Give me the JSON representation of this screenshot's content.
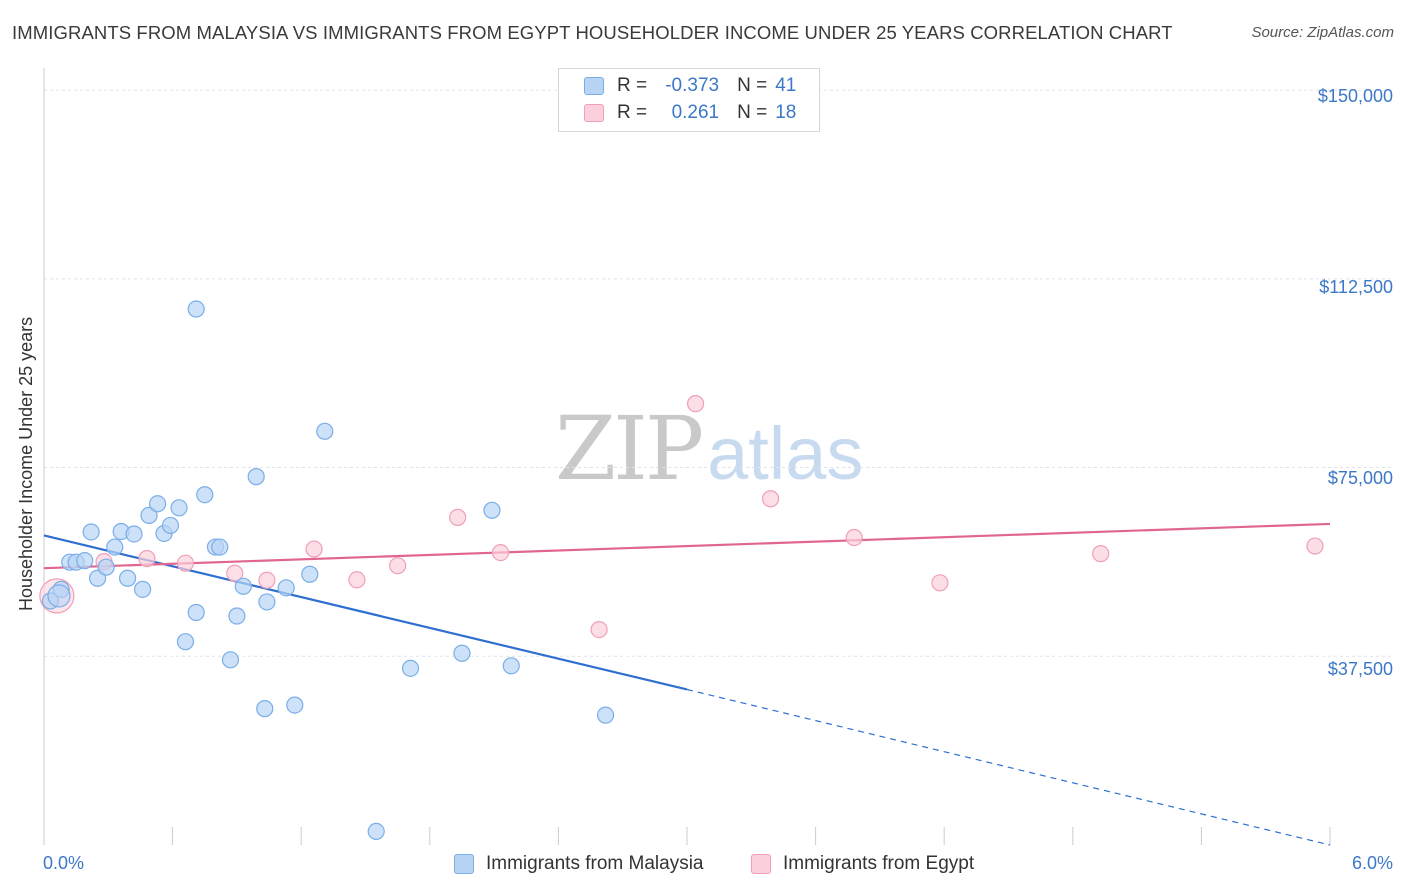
{
  "title": "IMMIGRANTS FROM MALAYSIA VS IMMIGRANTS FROM EGYPT HOUSEHOLDER INCOME UNDER 25 YEARS CORRELATION CHART",
  "source": "Source: ZipAtlas.com",
  "watermark": {
    "zip": "ZIP",
    "atlas": "atlas"
  },
  "colors": {
    "malaysia_fill": "#b8d4f5",
    "malaysia_stroke": "#7aaee8",
    "malaysia_line": "#2f6fd0",
    "egypt_fill": "#fbd0dc",
    "egypt_stroke": "#f0a0b6",
    "egypt_line": "#e06690",
    "tick_text": "#3c78c8",
    "grid": "#dde3ea"
  },
  "stats": {
    "malaysia": {
      "r_label": "R =",
      "r_value": "-0.373",
      "n_label": "N =",
      "n_value": "41"
    },
    "egypt": {
      "r_label": "R =",
      "r_value": "0.261",
      "n_label": "N =",
      "n_value": "18"
    }
  },
  "legend": {
    "malaysia": "Immigrants from Malaysia",
    "egypt": "Immigrants from Egypt"
  },
  "chart_data": {
    "type": "scatter",
    "title": "IMMIGRANTS FROM MALAYSIA VS IMMIGRANTS FROM EGYPT HOUSEHOLDER INCOME UNDER 25 YEARS CORRELATION CHART",
    "xlabel": "",
    "ylabel": "Householder Income Under 25 years",
    "xlim": [
      0,
      6
    ],
    "ylim": [
      0,
      153000
    ],
    "x_tick_labels": [
      "0.0%",
      "6.0%"
    ],
    "y_ticks": [
      37500,
      75000,
      112500,
      150000
    ],
    "y_tick_labels": [
      "$37,500",
      "$75,000",
      "$112,500",
      "$150,000"
    ],
    "grid": true,
    "series": [
      {
        "name": "Immigrants from Malaysia",
        "points": [
          [
            0.03,
            48500
          ],
          [
            0.08,
            50800
          ],
          [
            0.12,
            56200
          ],
          [
            0.15,
            56200
          ],
          [
            0.19,
            56500
          ],
          [
            0.22,
            62200
          ],
          [
            0.25,
            53000
          ],
          [
            0.29,
            55200
          ],
          [
            0.33,
            59200
          ],
          [
            0.36,
            62300
          ],
          [
            0.39,
            53000
          ],
          [
            0.42,
            61800
          ],
          [
            0.46,
            50800
          ],
          [
            0.49,
            65500
          ],
          [
            0.53,
            67800
          ],
          [
            0.56,
            61900
          ],
          [
            0.59,
            63500
          ],
          [
            0.63,
            67000
          ],
          [
            0.66,
            40400
          ],
          [
            0.71,
            46200
          ],
          [
            0.71,
            106500
          ],
          [
            0.75,
            69600
          ],
          [
            0.8,
            59200
          ],
          [
            0.82,
            59200
          ],
          [
            0.87,
            36800
          ],
          [
            0.9,
            45500
          ],
          [
            0.93,
            51400
          ],
          [
            0.99,
            73200
          ],
          [
            1.03,
            27100
          ],
          [
            1.04,
            48300
          ],
          [
            1.13,
            51100
          ],
          [
            1.17,
            27800
          ],
          [
            1.24,
            53800
          ],
          [
            1.31,
            82200
          ],
          [
            1.55,
            2700
          ],
          [
            1.71,
            35100
          ],
          [
            1.95,
            38100
          ],
          [
            2.09,
            66500
          ],
          [
            2.18,
            35600
          ],
          [
            2.62,
            25800
          ],
          [
            0.07,
            49500
          ]
        ]
      },
      {
        "name": "Immigrants from Egypt",
        "points": [
          [
            0.06,
            49500
          ],
          [
            0.28,
            56300
          ],
          [
            0.48,
            56900
          ],
          [
            0.66,
            56000
          ],
          [
            0.89,
            54000
          ],
          [
            1.04,
            52600
          ],
          [
            1.26,
            58800
          ],
          [
            1.46,
            52700
          ],
          [
            1.65,
            55500
          ],
          [
            1.93,
            65100
          ],
          [
            2.13,
            58100
          ],
          [
            2.59,
            42800
          ],
          [
            3.04,
            87700
          ],
          [
            3.39,
            68800
          ],
          [
            3.78,
            61100
          ],
          [
            4.18,
            52100
          ],
          [
            4.93,
            57900
          ],
          [
            5.93,
            59400
          ]
        ]
      }
    ],
    "trend_lines": [
      {
        "series": "Immigrants from Malaysia",
        "x_start": 0,
        "y_start": 61500,
        "x_end": 3.0,
        "y_end": 30900,
        "dashed_to_x": 6.0,
        "dashed_to_y": 0
      },
      {
        "series": "Immigrants from Egypt",
        "x_start": 0,
        "y_start": 55000,
        "x_end": 6.0,
        "y_end": 63800
      }
    ]
  }
}
